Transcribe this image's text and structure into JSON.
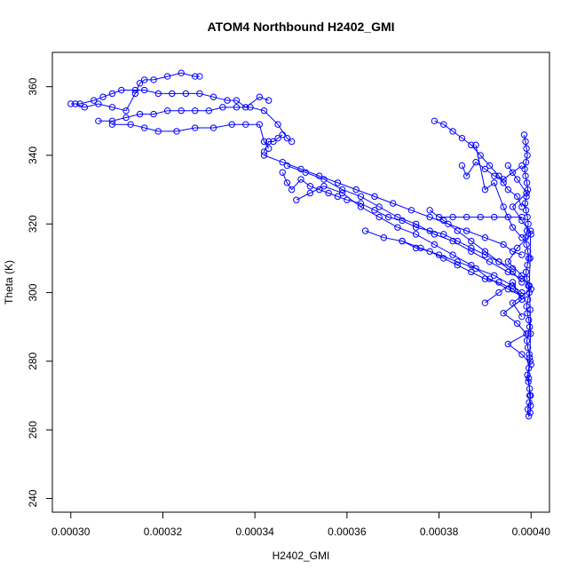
{
  "chart_data": {
    "type": "scatter",
    "title": "ATOM4 Northbound H2402_GMI",
    "xlabel": "H2402_GMI",
    "ylabel": "Theta (K)",
    "xlim": [
      0.000296,
      0.000404
    ],
    "ylim": [
      236,
      370
    ],
    "xticks": [
      "0.00030",
      "0.00032",
      "0.00034",
      "0.00036",
      "0.00038",
      "0.00040"
    ],
    "yticks": [
      "240",
      "260",
      "280",
      "300",
      "320",
      "340",
      "360"
    ],
    "grid": false,
    "legend": "none",
    "series": [
      {
        "color": "#0000ff",
        "marker": "open-circle",
        "line": "connected",
        "segments": [
          {
            "x": [
              0.0003,
              0.000302,
              0.000305,
              0.000307,
              0.000309,
              0.000311,
              0.000314,
              0.000316,
              0.000319,
              0.000322,
              0.000325,
              0.000328,
              0.000331,
              0.000334,
              0.000336,
              0.000338,
              0.000341,
              0.000343
            ],
            "y": [
              355,
              355,
              356,
              357,
              358,
              359,
              359,
              359,
              358,
              358,
              358,
              358,
              357,
              356,
              356,
              354,
              357,
              356
            ]
          },
          {
            "x": [
              0.000301,
              0.000303,
              0.000306,
              0.000309,
              0.000312,
              0.000314,
              0.000315,
              0.000316,
              0.000318,
              0.000321,
              0.000324,
              0.000327,
              0.000328
            ],
            "y": [
              355,
              354,
              355,
              354,
              353,
              358,
              361,
              362,
              362,
              363,
              364,
              363,
              363
            ]
          },
          {
            "x": [
              0.000306,
              0.000309,
              0.000312,
              0.000315,
              0.000318,
              0.000321,
              0.000324,
              0.000327,
              0.00033,
              0.000333,
              0.000336,
              0.000339,
              0.000342,
              0.000345,
              0.000347,
              0.000348
            ],
            "y": [
              350,
              350,
              351,
              352,
              352,
              353,
              353,
              353,
              353,
              354,
              354,
              354,
              353,
              349,
              345,
              344
            ]
          },
          {
            "x": [
              0.000309,
              0.000313,
              0.000316,
              0.000319,
              0.000323,
              0.000327,
              0.000331,
              0.000335,
              0.000338,
              0.000341,
              0.000342,
              0.000343
            ],
            "y": [
              349,
              349,
              348,
              347,
              347,
              348,
              348,
              349,
              349,
              349,
              344,
              342
            ]
          },
          {
            "x": [
              0.000342,
              0.000343,
              0.000344,
              0.000345,
              0.000346
            ],
            "y": [
              341,
              344,
              344,
              345,
              346
            ]
          },
          {
            "x": [
              0.000342,
              0.000346,
              0.00035,
              0.000354,
              0.000358,
              0.000362,
              0.000366,
              0.00037,
              0.000374,
              0.000378,
              0.000382,
              0.000386,
              0.00039,
              0.000394,
              0.000396,
              0.000398
            ],
            "y": [
              340,
              338,
              336,
              334,
              332,
              330,
              328,
              326,
              324,
              322,
              320,
              318,
              316,
              314,
              312,
              311
            ]
          },
          {
            "x": [
              0.000347,
              0.000351,
              0.000355,
              0.000359,
              0.000363,
              0.000367,
              0.000371,
              0.000375,
              0.000379,
              0.000383,
              0.000387,
              0.000391,
              0.000395,
              0.000398
            ],
            "y": [
              337,
              335,
              333,
              330,
              328,
              325,
              322,
              320,
              317,
              315,
              312,
              309,
              306,
              304
            ]
          },
          {
            "x": [
              0.000346,
              0.000347,
              0.000348,
              0.00035,
              0.000352,
              0.000354,
              0.000356,
              0.000358,
              0.00036,
              0.000363,
              0.000366,
              0.000369,
              0.000372,
              0.000375,
              0.000378,
              0.000381,
              0.000384,
              0.000387,
              0.00039,
              0.000393,
              0.000396
            ],
            "y": [
              335,
              332,
              330,
              333,
              331,
              330,
              329,
              328,
              327,
              326,
              324,
              322,
              321,
              319,
              318,
              317,
              315,
              313,
              311,
              309,
              307
            ]
          },
          {
            "x": [
              0.000349,
              0.000352,
              0.000355,
              0.000359,
              0.000363,
              0.000367,
              0.000371,
              0.000375,
              0.000379,
              0.000383,
              0.000387,
              0.000391,
              0.000395,
              0.000398
            ],
            "y": [
              327,
              329,
              331,
              329,
              325,
              322,
              319,
              317,
              314,
              311,
              308,
              304,
              301,
              299
            ]
          },
          {
            "x": [
              0.000364,
              0.000368,
              0.000372,
              0.000376,
              0.00038,
              0.000384,
              0.000388,
              0.000392,
              0.000396,
              0.000398
            ],
            "y": [
              318,
              316,
              315,
              313,
              311,
              309,
              307,
              305,
              302,
              300
            ]
          },
          {
            "x": [
              0.000372,
              0.000375,
              0.000378,
              0.000381,
              0.000384,
              0.000387,
              0.00039,
              0.000393,
              0.000396,
              0.000398
            ],
            "y": [
              315,
              313,
              312,
              310,
              308,
              306,
              304,
              303,
              301,
              299
            ]
          },
          {
            "x": [
              0.000378,
              0.000381,
              0.000384,
              0.000387,
              0.00039,
              0.000393,
              0.000396,
              0.000398
            ],
            "y": [
              324,
              321,
              318,
              315,
              312,
              309,
              306,
              303
            ]
          },
          {
            "x": [
              0.000379,
              0.000381,
              0.000383,
              0.000385,
              0.000387,
              0.000389,
              0.000391,
              0.000393,
              0.000394,
              0.000395,
              0.000397,
              0.000398
            ],
            "y": [
              350,
              349,
              347,
              345,
              343,
              340,
              337,
              334,
              332,
              330,
              328,
              325
            ]
          },
          {
            "x": [
              0.000385,
              0.000386,
              0.000388,
              0.00039,
              0.000392,
              0.000394,
              0.000396,
              0.000398
            ],
            "y": [
              337,
              334,
              338,
              336,
              334,
              333,
              335,
              337
            ]
          },
          {
            "x": [
              0.00038,
              0.000383,
              0.000386,
              0.000389,
              0.000392,
              0.000395,
              0.000398
            ],
            "y": [
              322,
              322,
              322,
              322,
              322,
              322,
              322
            ]
          },
          {
            "x": [
              0.000388,
              0.00039,
              0.000392,
              0.000394,
              0.000396,
              0.000398
            ],
            "y": [
              343,
              330,
              332,
              325,
              319,
              316
            ]
          },
          {
            "x": [
              0.0003985,
              0.0003988,
              0.000399,
              0.0003992,
              0.0003989,
              0.0003986,
              0.0003988,
              0.0003991,
              0.0003993,
              0.000399,
              0.0003987,
              0.0003989,
              0.0003992,
              0.0003994,
              0.0003991,
              0.0003988,
              0.000399,
              0.0003993,
              0.0003995,
              0.0003992,
              0.0003989,
              0.0003991,
              0.0003994,
              0.0003996,
              0.0003993,
              0.000399,
              0.0003992,
              0.0003995,
              0.0003997,
              0.0003994,
              0.0003991,
              0.0003993,
              0.0003996,
              0.0003998,
              0.0003995,
              0.0003992,
              0.0003994,
              0.0003997,
              0.0003999,
              0.0003996,
              0.0003993,
              0.0003995,
              0.0003998,
              0.0003999,
              0.0003997,
              0.0003995,
              0.0003997,
              0.0003999,
              0.0003998,
              0.0003996,
              0.0003998,
              0.0003999
            ],
            "y": [
              346,
              344,
              342,
              340,
              338,
              336,
              334,
              332,
              330,
              328,
              326,
              324,
              322,
              320,
              318,
              316,
              314,
              312,
              310,
              308,
              306,
              304,
              302,
              300,
              298,
              296,
              294,
              292,
              290,
              288,
              286,
              284,
              282,
              280,
              278,
              276,
              274,
              272,
              270,
              268,
              266,
              264,
              265,
              267,
              270,
              275,
              281,
              288,
              295,
              302,
              310,
              318
            ]
          },
          {
            "x": [
              0.000395,
              0.000397,
              0.000399,
              0.000396,
              0.000398,
              0.0004,
              0.000397,
              0.000395,
              0.000398,
              0.0004,
              0.000396,
              0.000398
            ],
            "y": [
              337,
              333,
              329,
              325,
              321,
              317,
              313,
              309,
              305,
              301,
              297,
              293
            ]
          },
          {
            "x": [
              0.00039,
              0.000393,
              0.000396,
              0.000398,
              0.000394,
              0.000397,
              0.000399,
              0.000395,
              0.000398,
              0.0004
            ],
            "y": [
              297,
              300,
              303,
              298,
              294,
              291,
              288,
              285,
              282,
              279
            ]
          }
        ]
      }
    ]
  }
}
